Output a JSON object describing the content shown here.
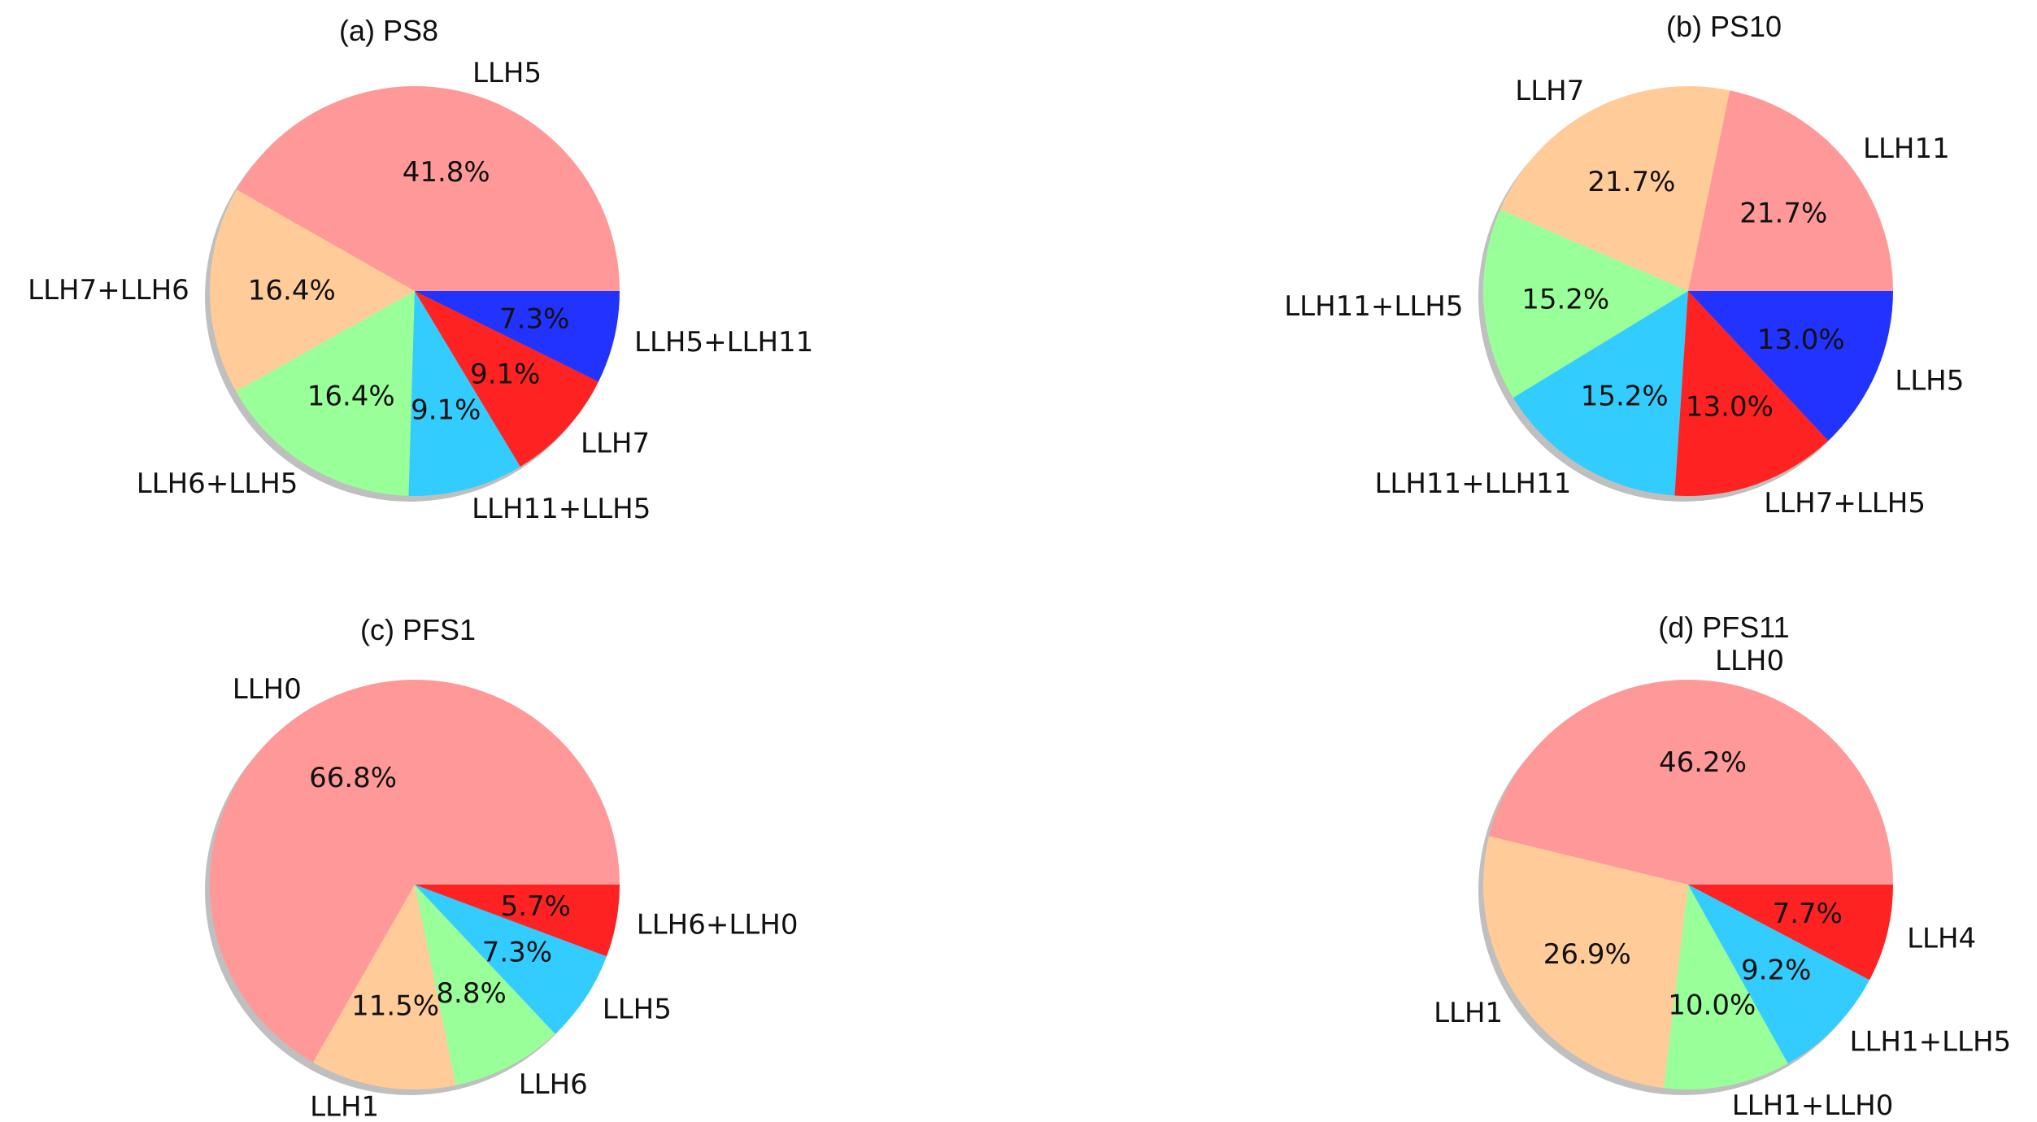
{
  "chart_data": [
    {
      "type": "pie",
      "title": "(a) PS8",
      "labels": [
        "LLH5",
        "LLH7+LLH6",
        "LLH6+LLH5",
        "LLH11+LLH5",
        "LLH7",
        "LLH5+LLH11"
      ],
      "values": [
        41.8,
        16.4,
        16.4,
        9.1,
        9.1,
        7.3
      ],
      "value_labels": [
        "41.8%",
        "16.4%",
        "16.4%",
        "9.1%",
        "9.1%",
        "7.3%"
      ],
      "colors": [
        "#ff9999",
        "#ffcc99",
        "#99ff99",
        "#33ccff",
        "#ff2222",
        "#2233ff"
      ],
      "startangle": 0,
      "direction": "counterclockwise",
      "shadow": true
    },
    {
      "type": "pie",
      "title": "(b) PS10",
      "labels": [
        "LLH11",
        "LLH7",
        "LLH11+LLH5",
        "LLH11+LLH11",
        "LLH7+LLH5",
        "LLH5"
      ],
      "values": [
        21.7,
        21.7,
        15.2,
        15.2,
        13.0,
        13.0
      ],
      "value_labels": [
        "21.7%",
        "21.7%",
        "15.2%",
        "15.2%",
        "13.0%",
        "13.0%"
      ],
      "colors": [
        "#ff9999",
        "#ffcc99",
        "#99ff99",
        "#33ccff",
        "#ff2222",
        "#2233ff"
      ],
      "startangle": 0,
      "direction": "counterclockwise",
      "shadow": true
    },
    {
      "type": "pie",
      "title": "(c) PFS1",
      "labels": [
        "LLH0",
        "LLH1",
        "LLH6",
        "LLH5",
        "LLH6+LLH0"
      ],
      "values": [
        66.8,
        11.5,
        8.8,
        7.3,
        5.7
      ],
      "value_labels": [
        "66.8%",
        "11.5%",
        "8.8%",
        "7.3%",
        "5.7%"
      ],
      "colors": [
        "#ff9999",
        "#ffcc99",
        "#99ff99",
        "#33ccff",
        "#ff2222"
      ],
      "startangle": 0,
      "direction": "counterclockwise",
      "shadow": true
    },
    {
      "type": "pie",
      "title": "(d) PFS11",
      "labels": [
        "LLH0",
        "LLH1",
        "LLH1+LLH0",
        "LLH1+LLH5",
        "LLH4"
      ],
      "values": [
        46.2,
        26.9,
        10.0,
        9.2,
        7.7
      ],
      "value_labels": [
        "46.2%",
        "26.9%",
        "10.0%",
        "9.2%",
        "7.7%"
      ],
      "colors": [
        "#ff9999",
        "#ffcc99",
        "#99ff99",
        "#33ccff",
        "#ff2222"
      ],
      "startangle": 0,
      "direction": "counterclockwise",
      "shadow": true
    }
  ]
}
